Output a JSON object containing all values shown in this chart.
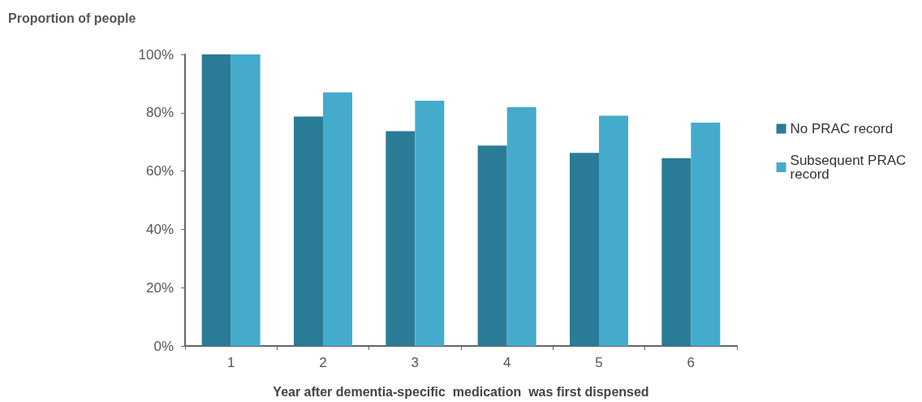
{
  "chart_data": {
    "type": "bar",
    "ylabel": "Proportion of people",
    "xlabel": "Year after dementia-specific  medication  was first dispensed",
    "categories": [
      "1",
      "2",
      "3",
      "4",
      "5",
      "6"
    ],
    "series": [
      {
        "name": "No PRAC record",
        "color": "#2a7b96",
        "values": [
          100,
          78.7,
          73.7,
          68.7,
          66.2,
          64.4
        ]
      },
      {
        "name": "Subsequent PRAC record",
        "color": "#45abcd",
        "values": [
          100,
          87,
          84.1,
          81.9,
          79,
          76.6
        ]
      }
    ],
    "ylim": [
      0,
      100
    ],
    "yticks": [
      {
        "value": 0,
        "label": "0%"
      },
      {
        "value": 20,
        "label": "20%"
      },
      {
        "value": 40,
        "label": "40%"
      },
      {
        "value": 60,
        "label": "60%"
      },
      {
        "value": 80,
        "label": "80%"
      },
      {
        "value": 100,
        "label": "100%"
      }
    ],
    "grid": false,
    "legend": "right"
  }
}
